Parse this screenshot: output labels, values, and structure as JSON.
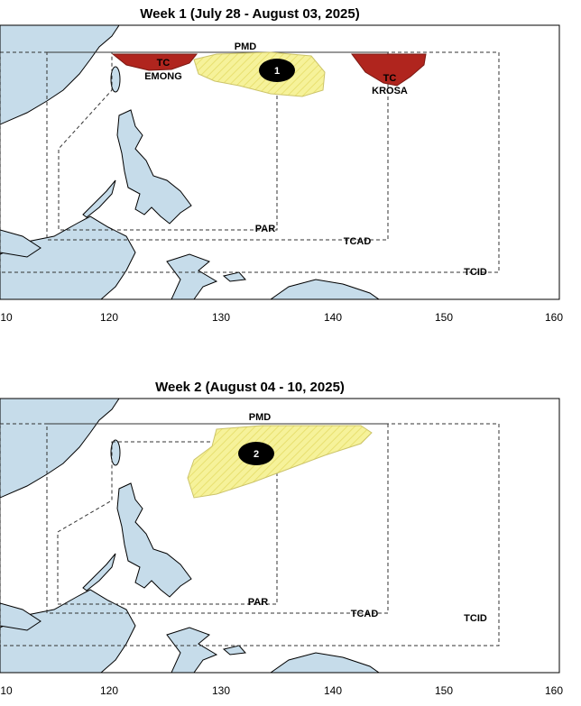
{
  "panels": [
    {
      "title": "Week 1 (July 28 - August 03, 2025)",
      "regions": {
        "pmd": "PMD",
        "par": "PAR",
        "tcad": "TCAD",
        "tcid": "TCID"
      },
      "systems": [
        {
          "label": "TC",
          "name": "EMONG"
        },
        {
          "label": "TC",
          "name": "KROSA"
        }
      ],
      "outlook_number": "1",
      "x_axis_labels": [
        "10",
        "120",
        "130",
        "140",
        "150",
        "160"
      ]
    },
    {
      "title": "Week 2 (August 04 - 10, 2025)",
      "regions": {
        "pmd": "PMD",
        "par": "PAR",
        "tcad": "TCAD",
        "tcid": "TCID"
      },
      "outlook_number": "2",
      "x_axis_labels": [
        "10",
        "120",
        "130",
        "140",
        "150",
        "160"
      ]
    }
  ]
}
